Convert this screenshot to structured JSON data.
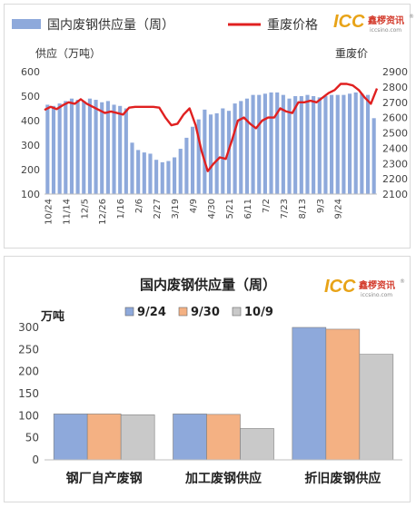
{
  "logo": {
    "mark": "ICC",
    "cn": "鑫椤资讯",
    "url": "iccsino.com",
    "reg": "®",
    "mark_color": "#e8a317",
    "cn_color": "#d33a2b"
  },
  "chart_data": [
    {
      "type": "bar+line",
      "legend": [
        "国内废钢供应量（周）",
        "重废价格"
      ],
      "left_axis_label": "供应（万吨）",
      "right_axis_label": "重废价",
      "ylim_left": [
        100,
        600
      ],
      "yticks_left": [
        100,
        200,
        300,
        400,
        500,
        600
      ],
      "ylim_right": [
        2100,
        2900
      ],
      "yticks_right": [
        2100,
        2200,
        2300,
        2400,
        2500,
        2600,
        2700,
        2800,
        2900
      ],
      "x_tick_labels": [
        "10/24",
        "11/14",
        "12/5",
        "12/26",
        "1/16",
        "2/6",
        "2/27",
        "3/19",
        "4/9",
        "4/30",
        "5/21",
        "6/11",
        "7/2",
        "7/23",
        "8/13",
        "9/3",
        "9/24"
      ],
      "tick_every": 3,
      "series": [
        {
          "name": "国内废钢供应量（周）",
          "type": "bar",
          "color": "#8ea9db",
          "values": [
            465,
            460,
            470,
            480,
            490,
            485,
            480,
            490,
            485,
            475,
            480,
            465,
            460,
            450,
            310,
            280,
            270,
            265,
            240,
            230,
            235,
            250,
            285,
            330,
            375,
            405,
            445,
            425,
            430,
            450,
            440,
            470,
            480,
            490,
            505,
            505,
            510,
            515,
            515,
            505,
            490,
            500,
            500,
            505,
            500,
            495,
            500,
            505,
            505,
            505,
            510,
            515,
            510,
            505,
            410
          ]
        },
        {
          "name": "重废价格",
          "type": "line",
          "color": "#e02020",
          "values": [
            2650,
            2670,
            2655,
            2680,
            2700,
            2690,
            2720,
            2690,
            2670,
            2650,
            2630,
            2640,
            2630,
            2620,
            2665,
            2670,
            2670,
            2670,
            2670,
            2665,
            2600,
            2550,
            2560,
            2620,
            2660,
            2550,
            2380,
            2250,
            2300,
            2340,
            2330,
            2450,
            2580,
            2600,
            2560,
            2530,
            2580,
            2600,
            2600,
            2660,
            2640,
            2630,
            2700,
            2700,
            2710,
            2700,
            2730,
            2760,
            2780,
            2820,
            2820,
            2810,
            2780,
            2730,
            2690,
            2790
          ]
        }
      ]
    },
    {
      "type": "bar",
      "title": "国内废钢供应量（周）",
      "ylabel": "万吨",
      "ylim": [
        0,
        300
      ],
      "yticks": [
        0,
        50,
        100,
        150,
        200,
        250,
        300
      ],
      "categories": [
        "钢厂自产废钢",
        "加工废钢供应",
        "折旧废钢供应"
      ],
      "series": [
        {
          "name": "9/24",
          "color": "#8ea9db",
          "values": [
            104,
            104,
            300
          ]
        },
        {
          "name": "9/30",
          "color": "#f4b183",
          "values": [
            104,
            103,
            296
          ]
        },
        {
          "name": "10/9",
          "color": "#c9c9c9",
          "values": [
            102,
            71,
            239
          ]
        }
      ]
    }
  ]
}
